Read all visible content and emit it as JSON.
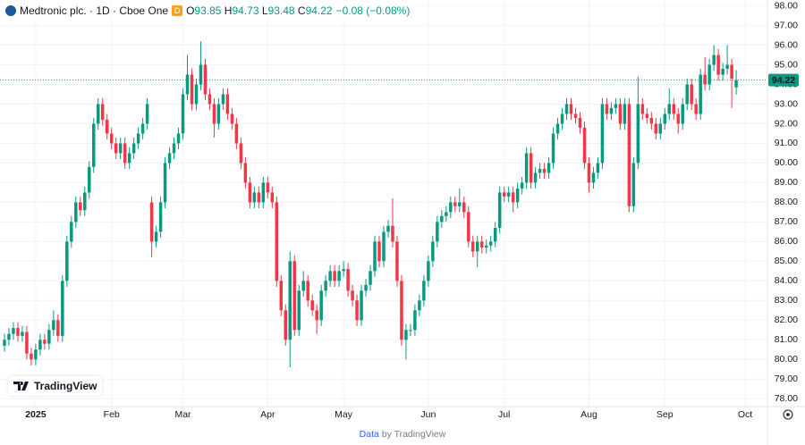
{
  "chart_data": {
    "type": "candlestick",
    "title": "Medtronic plc. · 1D · Cboe One",
    "badge": "D",
    "ohlc_labels": [
      "O",
      "H",
      "L",
      "C"
    ],
    "change_label": "−0.08 (−0.08%)",
    "up_color": "#089981",
    "down_color": "#f23645",
    "logo_text": "TradingView",
    "footer": {
      "prefix": "Data",
      "suffix": "by TradingView"
    },
    "xlim": [
      -1,
      171
    ],
    "xticks": [
      {
        "value": 7,
        "label": "2025"
      },
      {
        "value": 24,
        "label": "Feb"
      },
      {
        "value": 40,
        "label": "Mar"
      },
      {
        "value": 59,
        "label": "Apr"
      },
      {
        "value": 76,
        "label": "May"
      },
      {
        "value": 95,
        "label": "Jun"
      },
      {
        "value": 112,
        "label": "Jul"
      },
      {
        "value": 131,
        "label": "Aug"
      },
      {
        "value": 148,
        "label": "Sep"
      },
      {
        "value": 166,
        "label": "Oct"
      }
    ],
    "ylim": [
      77.6,
      98.3
    ],
    "yticks": [
      {
        "value": 78,
        "label": "78.00"
      },
      {
        "value": 79,
        "label": "79.00"
      },
      {
        "value": 80,
        "label": "80.00"
      },
      {
        "value": 81,
        "label": "81.00"
      },
      {
        "value": 82,
        "label": "82.00"
      },
      {
        "value": 83,
        "label": "83.00"
      },
      {
        "value": 84,
        "label": "84.00"
      },
      {
        "value": 85,
        "label": "85.00"
      },
      {
        "value": 86,
        "label": "86.00"
      },
      {
        "value": 87,
        "label": "87.00"
      },
      {
        "value": 88,
        "label": "88.00"
      },
      {
        "value": 89,
        "label": "89.00"
      },
      {
        "value": 90,
        "label": "90.00"
      },
      {
        "value": 91,
        "label": "91.00"
      },
      {
        "value": 92,
        "label": "92.00"
      },
      {
        "value": 93,
        "label": "93.00"
      },
      {
        "value": 94,
        "label": "94.00"
      },
      {
        "value": 95,
        "label": "95.00"
      },
      {
        "value": 96,
        "label": "96.00"
      },
      {
        "value": 97,
        "label": "97.00"
      },
      {
        "value": 98,
        "label": "98.00"
      }
    ],
    "grid": true,
    "candles": [
      [
        80.7,
        81.3,
        80.4,
        81.0
      ],
      [
        81.0,
        81.6,
        80.7,
        81.3
      ],
      [
        81.3,
        81.9,
        81.0,
        81.6
      ],
      [
        81.6,
        81.9,
        80.9,
        81.2
      ],
      [
        81.2,
        81.7,
        80.9,
        81.4
      ],
      [
        81.4,
        81.7,
        80.0,
        80.3
      ],
      [
        80.3,
        80.6,
        79.7,
        80.0
      ],
      [
        80.0,
        80.8,
        79.7,
        80.5
      ],
      [
        80.5,
        81.3,
        80.2,
        81.0
      ],
      [
        81.0,
        81.3,
        80.5,
        80.8
      ],
      [
        80.8,
        81.8,
        80.5,
        81.5
      ],
      [
        81.5,
        82.5,
        81.2,
        82.0
      ],
      [
        82.0,
        82.3,
        80.9,
        81.2
      ],
      [
        81.2,
        84.3,
        80.9,
        84.0
      ],
      [
        84.0,
        86.3,
        83.7,
        86.0
      ],
      [
        86.0,
        87.3,
        85.7,
        87.0
      ],
      [
        87.0,
        88.3,
        86.7,
        88.0
      ],
      [
        88.0,
        88.3,
        87.3,
        87.6
      ],
      [
        87.6,
        88.8,
        87.3,
        88.5
      ],
      [
        88.5,
        90.1,
        88.2,
        89.8
      ],
      [
        89.8,
        92.3,
        89.5,
        92.0
      ],
      [
        92.0,
        93.3,
        91.7,
        93.0
      ],
      [
        93.0,
        93.3,
        91.9,
        92.2
      ],
      [
        92.2,
        92.5,
        91.2,
        91.5
      ],
      [
        91.5,
        91.8,
        90.7,
        91.0
      ],
      [
        91.0,
        91.3,
        90.2,
        90.5
      ],
      [
        90.5,
        91.3,
        90.2,
        91.0
      ],
      [
        91.0,
        91.3,
        89.7,
        90.0
      ],
      [
        90.0,
        90.8,
        89.7,
        90.5
      ],
      [
        90.5,
        91.3,
        90.2,
        91.0
      ],
      [
        91.0,
        91.8,
        90.7,
        91.5
      ],
      [
        91.5,
        92.3,
        91.2,
        92.0
      ],
      [
        92.0,
        93.3,
        91.7,
        93.0
      ],
      [
        88.0,
        88.3,
        85.2,
        86.0
      ],
      [
        86.0,
        86.8,
        85.7,
        86.5
      ],
      [
        86.5,
        88.3,
        86.2,
        88.0
      ],
      [
        88.0,
        90.3,
        87.7,
        90.0
      ],
      [
        90.0,
        90.8,
        89.7,
        90.5
      ],
      [
        90.5,
        91.3,
        90.2,
        91.0
      ],
      [
        91.0,
        91.8,
        90.7,
        91.5
      ],
      [
        91.5,
        93.8,
        91.2,
        93.5
      ],
      [
        93.5,
        95.5,
        93.2,
        94.5
      ],
      [
        94.5,
        94.8,
        92.7,
        93.0
      ],
      [
        93.0,
        94.3,
        92.7,
        94.0
      ],
      [
        94.0,
        96.2,
        93.7,
        95.0
      ],
      [
        95.0,
        95.3,
        93.2,
        93.5
      ],
      [
        93.5,
        93.8,
        92.7,
        93.0
      ],
      [
        93.0,
        93.3,
        91.3,
        92.0
      ],
      [
        92.0,
        93.3,
        91.7,
        93.0
      ],
      [
        93.0,
        93.8,
        92.7,
        93.5
      ],
      [
        93.5,
        93.8,
        92.2,
        92.5
      ],
      [
        92.5,
        92.8,
        91.7,
        92.0
      ],
      [
        92.0,
        92.3,
        90.7,
        91.0
      ],
      [
        91.0,
        91.3,
        89.7,
        90.0
      ],
      [
        90.0,
        90.3,
        88.7,
        89.0
      ],
      [
        89.0,
        89.3,
        87.7,
        88.0
      ],
      [
        88.0,
        88.8,
        87.7,
        88.5
      ],
      [
        88.5,
        88.8,
        87.7,
        88.0
      ],
      [
        88.0,
        89.3,
        87.7,
        89.0
      ],
      [
        89.0,
        89.3,
        88.2,
        88.5
      ],
      [
        88.5,
        88.8,
        87.7,
        88.0
      ],
      [
        88.0,
        88.3,
        83.7,
        84.0
      ],
      [
        84.0,
        84.3,
        82.2,
        82.5
      ],
      [
        82.5,
        82.8,
        80.7,
        81.0
      ],
      [
        81.0,
        85.5,
        79.6,
        85.0
      ],
      [
        85.0,
        85.3,
        81.2,
        81.5
      ],
      [
        81.5,
        83.8,
        81.2,
        83.5
      ],
      [
        83.5,
        84.5,
        83.2,
        84.0
      ],
      [
        84.0,
        84.3,
        82.7,
        83.0
      ],
      [
        83.0,
        83.3,
        82.2,
        82.5
      ],
      [
        82.5,
        82.8,
        81.3,
        82.0
      ],
      [
        82.0,
        83.8,
        81.7,
        83.5
      ],
      [
        83.5,
        84.3,
        83.2,
        84.0
      ],
      [
        84.0,
        84.8,
        83.7,
        84.5
      ],
      [
        84.5,
        84.8,
        83.7,
        84.0
      ],
      [
        84.0,
        84.8,
        83.7,
        84.5
      ],
      [
        84.5,
        85.0,
        84.2,
        84.6
      ],
      [
        84.6,
        84.9,
        83.2,
        83.5
      ],
      [
        83.5,
        83.8,
        82.7,
        83.0
      ],
      [
        83.0,
        83.3,
        81.7,
        82.0
      ],
      [
        82.0,
        83.8,
        81.7,
        83.5
      ],
      [
        83.5,
        84.1,
        83.2,
        83.8
      ],
      [
        83.8,
        84.8,
        83.5,
        84.5
      ],
      [
        84.5,
        86.3,
        84.2,
        86.0
      ],
      [
        86.0,
        86.3,
        84.7,
        85.0
      ],
      [
        85.0,
        86.8,
        84.7,
        86.5
      ],
      [
        86.5,
        87.1,
        86.2,
        86.8
      ],
      [
        86.8,
        88.2,
        85.7,
        86.0
      ],
      [
        86.0,
        86.3,
        83.7,
        84.0
      ],
      [
        84.0,
        84.3,
        80.7,
        81.0
      ],
      [
        81.0,
        81.8,
        80.0,
        81.5
      ],
      [
        81.5,
        81.8,
        81.2,
        81.5
      ],
      [
        81.5,
        82.8,
        81.2,
        82.5
      ],
      [
        82.5,
        83.3,
        82.2,
        83.0
      ],
      [
        83.0,
        84.3,
        82.7,
        84.0
      ],
      [
        84.0,
        85.3,
        83.7,
        85.0
      ],
      [
        85.0,
        86.3,
        84.7,
        86.0
      ],
      [
        86.0,
        87.3,
        85.7,
        87.0
      ],
      [
        87.0,
        87.6,
        86.7,
        87.3
      ],
      [
        87.3,
        87.8,
        87.0,
        87.5
      ],
      [
        87.5,
        88.3,
        87.2,
        88.0
      ],
      [
        88.0,
        88.3,
        87.5,
        87.8
      ],
      [
        87.8,
        88.7,
        87.5,
        88.0
      ],
      [
        88.0,
        88.3,
        87.2,
        87.5
      ],
      [
        87.5,
        87.8,
        85.7,
        86.0
      ],
      [
        86.0,
        86.3,
        85.2,
        85.5
      ],
      [
        85.5,
        86.3,
        84.7,
        86.0
      ],
      [
        86.0,
        86.3,
        85.4,
        85.7
      ],
      [
        85.7,
        86.1,
        85.4,
        85.8
      ],
      [
        85.8,
        86.3,
        85.5,
        86.0
      ],
      [
        86.0,
        87.0,
        85.7,
        86.7
      ],
      [
        86.7,
        88.8,
        86.4,
        88.5
      ],
      [
        88.5,
        88.8,
        88.0,
        88.3
      ],
      [
        88.3,
        88.8,
        88.0,
        88.5
      ],
      [
        88.5,
        88.8,
        87.5,
        88.0
      ],
      [
        88.0,
        89.0,
        87.7,
        88.7
      ],
      [
        88.7,
        89.3,
        88.4,
        89.0
      ],
      [
        89.0,
        90.8,
        88.7,
        90.5
      ],
      [
        90.5,
        90.8,
        88.7,
        89.0
      ],
      [
        89.0,
        89.8,
        88.7,
        89.5
      ],
      [
        89.5,
        90.0,
        89.2,
        89.7
      ],
      [
        89.7,
        90.0,
        89.2,
        89.5
      ],
      [
        89.5,
        90.3,
        89.2,
        90.0
      ],
      [
        90.0,
        91.8,
        89.7,
        91.5
      ],
      [
        91.5,
        92.3,
        91.2,
        92.0
      ],
      [
        92.0,
        92.8,
        91.7,
        92.5
      ],
      [
        92.5,
        93.3,
        92.2,
        93.0
      ],
      [
        93.0,
        93.3,
        92.2,
        92.5
      ],
      [
        92.5,
        92.8,
        92.0,
        92.3
      ],
      [
        92.3,
        92.6,
        91.5,
        91.8
      ],
      [
        91.8,
        92.1,
        89.7,
        90.0
      ],
      [
        90.0,
        90.3,
        88.5,
        89.0
      ],
      [
        89.0,
        89.8,
        88.7,
        89.5
      ],
      [
        89.5,
        90.3,
        89.2,
        90.0
      ],
      [
        90.0,
        93.3,
        89.7,
        93.0
      ],
      [
        93.0,
        93.3,
        92.2,
        92.5
      ],
      [
        92.5,
        93.1,
        92.2,
        92.8
      ],
      [
        92.8,
        93.3,
        92.5,
        93.0
      ],
      [
        93.0,
        93.3,
        91.7,
        92.0
      ],
      [
        92.0,
        93.3,
        91.7,
        93.0
      ],
      [
        93.0,
        93.3,
        87.5,
        87.8
      ],
      [
        87.8,
        90.3,
        87.5,
        90.0
      ],
      [
        90.0,
        94.4,
        89.7,
        93.0
      ],
      [
        93.0,
        93.3,
        92.2,
        92.5
      ],
      [
        92.5,
        92.8,
        92.0,
        92.3
      ],
      [
        92.3,
        92.6,
        91.7,
        92.0
      ],
      [
        92.0,
        92.3,
        91.2,
        91.5
      ],
      [
        91.5,
        92.3,
        91.2,
        92.0
      ],
      [
        92.0,
        92.8,
        91.7,
        92.5
      ],
      [
        92.5,
        93.8,
        92.2,
        93.0
      ],
      [
        93.0,
        93.3,
        92.2,
        92.5
      ],
      [
        92.5,
        92.8,
        91.5,
        92.0
      ],
      [
        92.0,
        93.3,
        91.7,
        93.0
      ],
      [
        93.0,
        94.3,
        92.7,
        94.0
      ],
      [
        94.0,
        94.3,
        92.7,
        93.0
      ],
      [
        93.0,
        93.3,
        92.2,
        92.5
      ],
      [
        92.5,
        94.8,
        92.2,
        94.5
      ],
      [
        94.5,
        95.4,
        93.7,
        94.0
      ],
      [
        94.0,
        95.3,
        93.7,
        95.0
      ],
      [
        95.0,
        96.0,
        94.7,
        95.5
      ],
      [
        95.5,
        95.8,
        94.2,
        94.5
      ],
      [
        94.5,
        95.1,
        94.2,
        94.8
      ],
      [
        94.8,
        96.0,
        94.5,
        95.0
      ],
      [
        95.0,
        95.3,
        92.8,
        94.3
      ],
      [
        93.85,
        94.73,
        93.48,
        94.22
      ]
    ]
  }
}
